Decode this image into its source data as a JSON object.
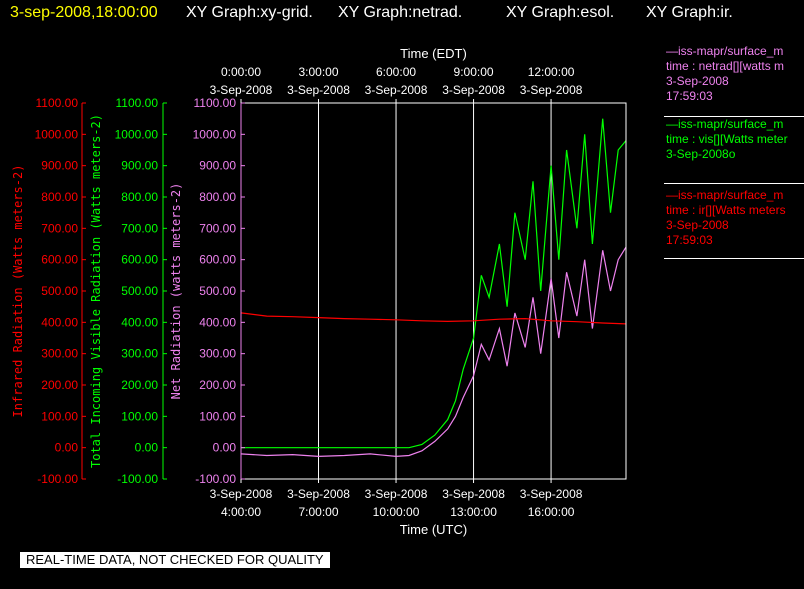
{
  "header": {
    "timestamp": "3-sep-2008,18:00:00",
    "titles": [
      "XY Graph:xy-grid.",
      "XY Graph:netrad.",
      "XY Graph:esol.",
      "XY Graph:ir."
    ]
  },
  "legend": [
    {
      "lines": [
        "—iss-mapr/surface_m",
        "time : netrad[][watts m",
        "3-Sep-2008",
        "17:59:03"
      ],
      "color": "#ee82ee"
    },
    {
      "lines": [
        "—iss-mapr/surface_m",
        "time : vis[][Watts meter",
        "3-Sep-2008o"
      ],
      "color": "#00ff00"
    },
    {
      "lines": [
        "—iss-mapr/surface_m",
        "time : ir[][Watts meters",
        "3-Sep-2008",
        "17:59:03"
      ],
      "color": "#ff0000"
    }
  ],
  "disclaimer": "REAL-TIME DATA, NOT CHECKED FOR QUALITY",
  "colors": {
    "red": "#ff0000",
    "green": "#00ff00",
    "violet": "#ee82ee",
    "white": "#ffffff",
    "yellow": "#ffff00"
  },
  "chart_data": {
    "type": "line",
    "x_top_label": "Time (EDT)",
    "x_bottom_label": "Time (UTC)",
    "x_range_hours_utc": [
      4.0,
      18.9
    ],
    "top_ticks": [
      {
        "hour_utc": 4,
        "time": "0:00:00",
        "date": "3-Sep-2008"
      },
      {
        "hour_utc": 7,
        "time": "3:00:00",
        "date": "3-Sep-2008"
      },
      {
        "hour_utc": 10,
        "time": "6:00:00",
        "date": "3-Sep-2008"
      },
      {
        "hour_utc": 13,
        "time": "9:00:00",
        "date": "3-Sep-2008"
      },
      {
        "hour_utc": 16,
        "time": "12:00:00",
        "date": "3-Sep-2008"
      }
    ],
    "bottom_ticks": [
      {
        "hour_utc": 4,
        "date": "3-Sep-2008",
        "time": "4:00:00"
      },
      {
        "hour_utc": 7,
        "date": "3-Sep-2008",
        "time": "7:00:00"
      },
      {
        "hour_utc": 10,
        "date": "3-Sep-2008",
        "time": "10:00:00"
      },
      {
        "hour_utc": 13,
        "date": "3-Sep-2008",
        "time": "13:00:00"
      },
      {
        "hour_utc": 16,
        "date": "3-Sep-2008",
        "time": "16:00:00"
      }
    ],
    "y_range": [
      -100,
      1100
    ],
    "y_ticks": [
      "1100.00",
      "1000.00",
      "900.00",
      "800.00",
      "700.00",
      "600.00",
      "500.00",
      "400.00",
      "300.00",
      "200.00",
      "100.00",
      "0.00",
      "-100.00"
    ],
    "axes": [
      {
        "label": "Infrared Radiation (Watts meters-2)",
        "color": "#ff0000"
      },
      {
        "label": "Total Incoming Visible Radiation (Watts meters-2)",
        "color": "#00ff00"
      },
      {
        "label": "Net Radiation (watts meters-2)",
        "color": "#ee82ee"
      }
    ],
    "series": [
      {
        "color": "#00ff00",
        "x": [
          4,
          10.5,
          11,
          11.5,
          12,
          12.3,
          12.6,
          13,
          13.3,
          13.6,
          14,
          14.3,
          14.6,
          15,
          15.3,
          15.6,
          16,
          16.3,
          16.6,
          17,
          17.3,
          17.6,
          18,
          18.3,
          18.6,
          18.9
        ],
        "y": [
          0,
          0,
          10,
          40,
          90,
          150,
          250,
          350,
          550,
          480,
          650,
          450,
          750,
          600,
          850,
          500,
          900,
          600,
          950,
          700,
          1000,
          650,
          1050,
          750,
          950,
          980
        ]
      },
      {
        "color": "#ee82ee",
        "x": [
          4,
          5,
          6,
          7,
          8,
          9,
          10,
          10.5,
          11,
          11.5,
          12,
          12.3,
          12.6,
          13,
          13.3,
          13.6,
          14,
          14.3,
          14.6,
          15,
          15.3,
          15.6,
          16,
          16.3,
          16.6,
          17,
          17.3,
          17.6,
          18,
          18.3,
          18.6,
          18.9
        ],
        "y": [
          -20,
          -25,
          -22,
          -28,
          -25,
          -20,
          -28,
          -25,
          -10,
          20,
          60,
          100,
          160,
          230,
          330,
          280,
          380,
          260,
          430,
          320,
          480,
          300,
          540,
          350,
          560,
          420,
          600,
          380,
          630,
          500,
          600,
          640
        ]
      },
      {
        "color": "#ff0000",
        "x": [
          4,
          5,
          6,
          7,
          8,
          9,
          10,
          11,
          12,
          13,
          14,
          15,
          16,
          17,
          18,
          18.9
        ],
        "y": [
          430,
          420,
          418,
          415,
          412,
          410,
          408,
          405,
          403,
          405,
          410,
          412,
          405,
          402,
          398,
          395
        ]
      }
    ]
  }
}
